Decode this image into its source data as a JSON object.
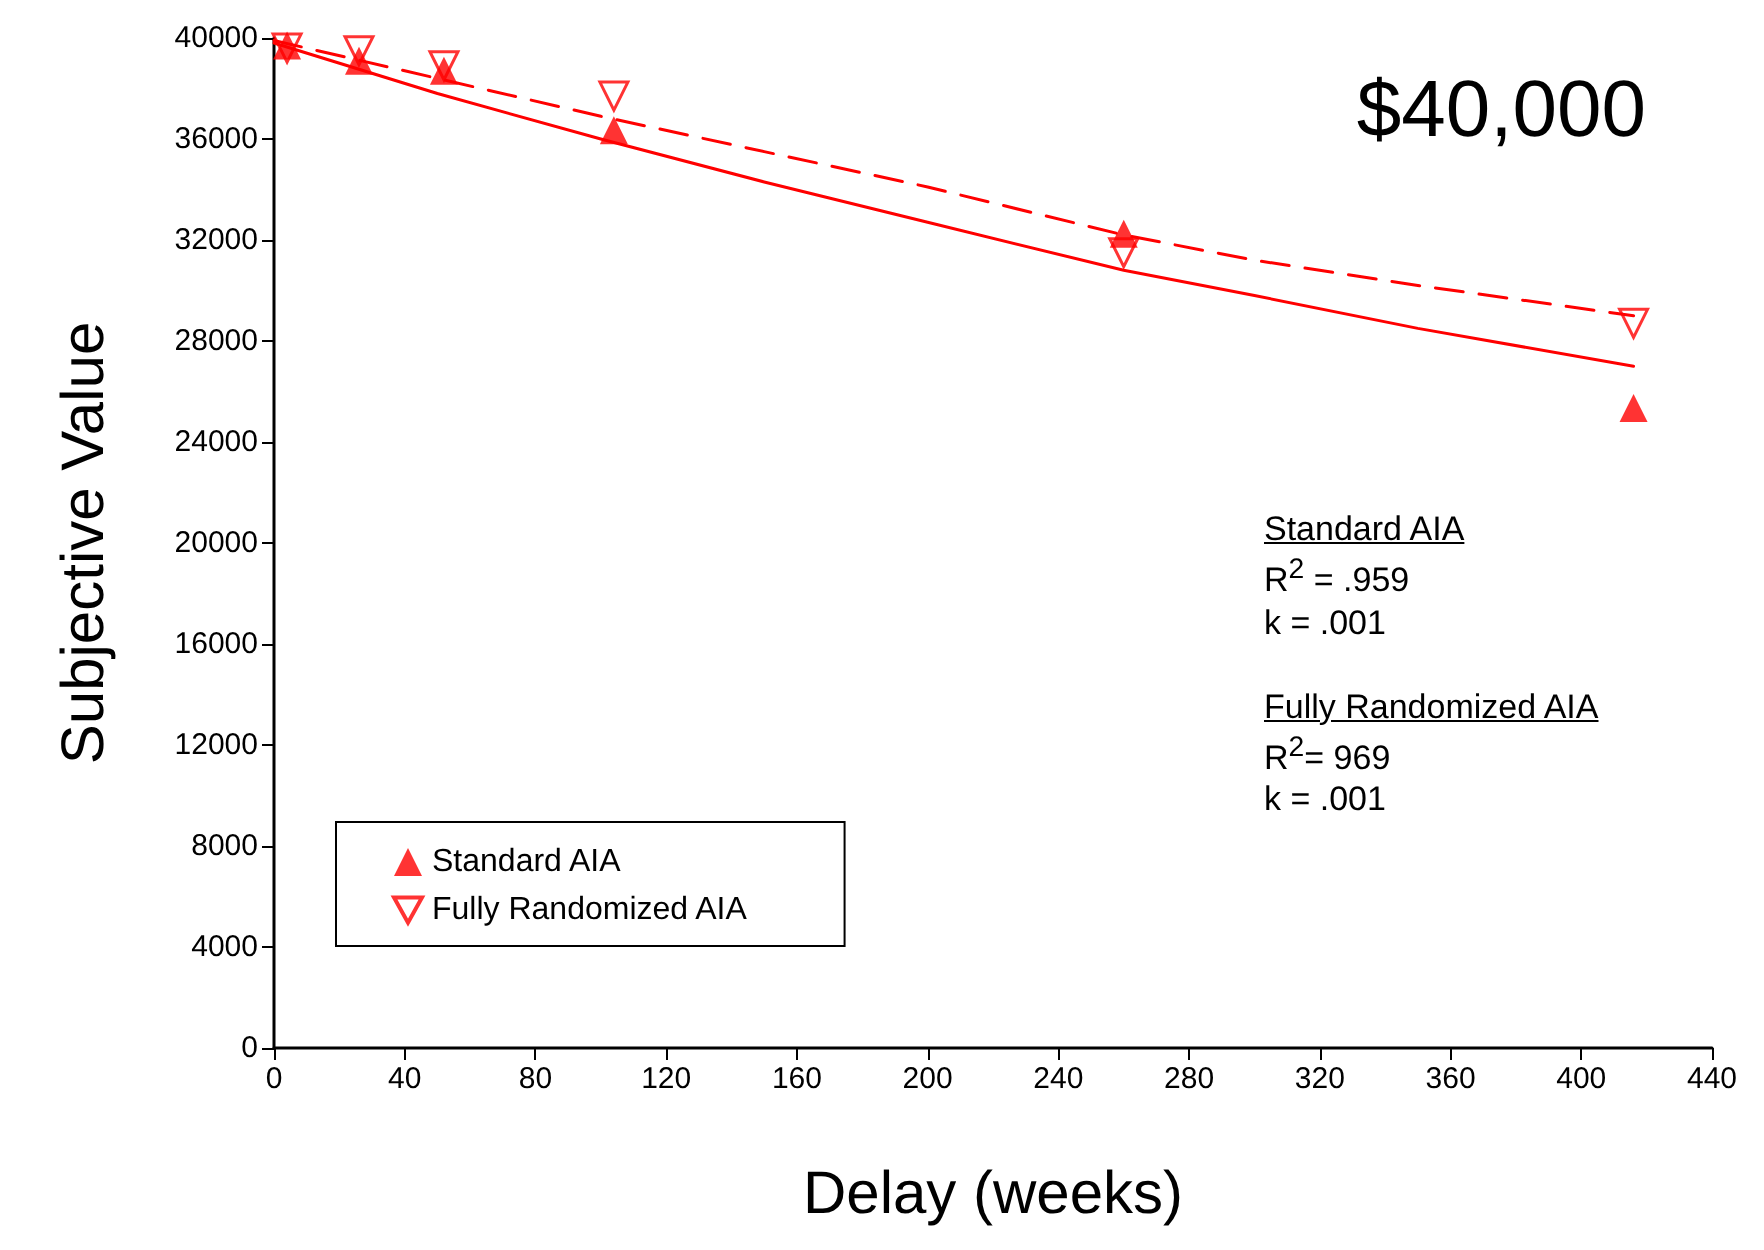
{
  "chart_data": {
    "type": "scatter",
    "title": "$40,000",
    "xlabel": "Delay (weeks)",
    "ylabel": "Subjective Value",
    "xlim": [
      0,
      440
    ],
    "xticks": [
      0,
      40,
      80,
      120,
      160,
      200,
      240,
      280,
      320,
      360,
      400,
      440
    ],
    "ylim": [
      0,
      40000
    ],
    "yticks": [
      0,
      4000,
      8000,
      12000,
      16000,
      20000,
      24000,
      28000,
      32000,
      36000,
      40000
    ],
    "grid": false,
    "legend": "bottom left",
    "annotations": [
      "Standard AIA",
      "R$^{2}$ = .959",
      "k = .001",
      "Fully Randomized AIA",
      "R$^{2}$= 969",
      "k = .001"
    ],
    "series": [
      {
        "name": "Standard AIA",
        "marker": "triangle",
        "color": "#ff0000",
        "x": [
          4,
          26,
          52,
          104,
          260,
          416
        ],
        "values": [
          39700,
          39100,
          38700,
          36350,
          32250,
          25350
        ]
      },
      {
        "name": "Fully Randomized AIA",
        "marker": "triangle",
        "color": "#ff0000",
        "x": [
          4,
          26,
          52,
          104,
          260,
          416
        ],
        "values": [
          39600,
          39500,
          38900,
          37700,
          31500,
          28700
        ]
      },
      {
        "type": "line",
        "marker": "none",
        "line_style": "solid",
        "color": "#ff0000",
        "x": [
          0,
          50,
          100,
          150,
          200,
          260,
          300,
          350,
          416
        ],
        "values": [
          39800,
          37800,
          36000,
          34300,
          32700,
          30800,
          29800,
          28500,
          27000
        ]
      },
      {
        "type": "line",
        "marker": "none",
        "line_style": "dashed",
        "color": "#ff0000",
        "x": [
          0,
          50,
          100,
          150,
          200,
          260,
          300,
          350,
          416
        ],
        "values": [
          39900,
          38400,
          36900,
          35500,
          34100,
          32200,
          31200,
          30200,
          29000
        ]
      }
    ]
  }
}
